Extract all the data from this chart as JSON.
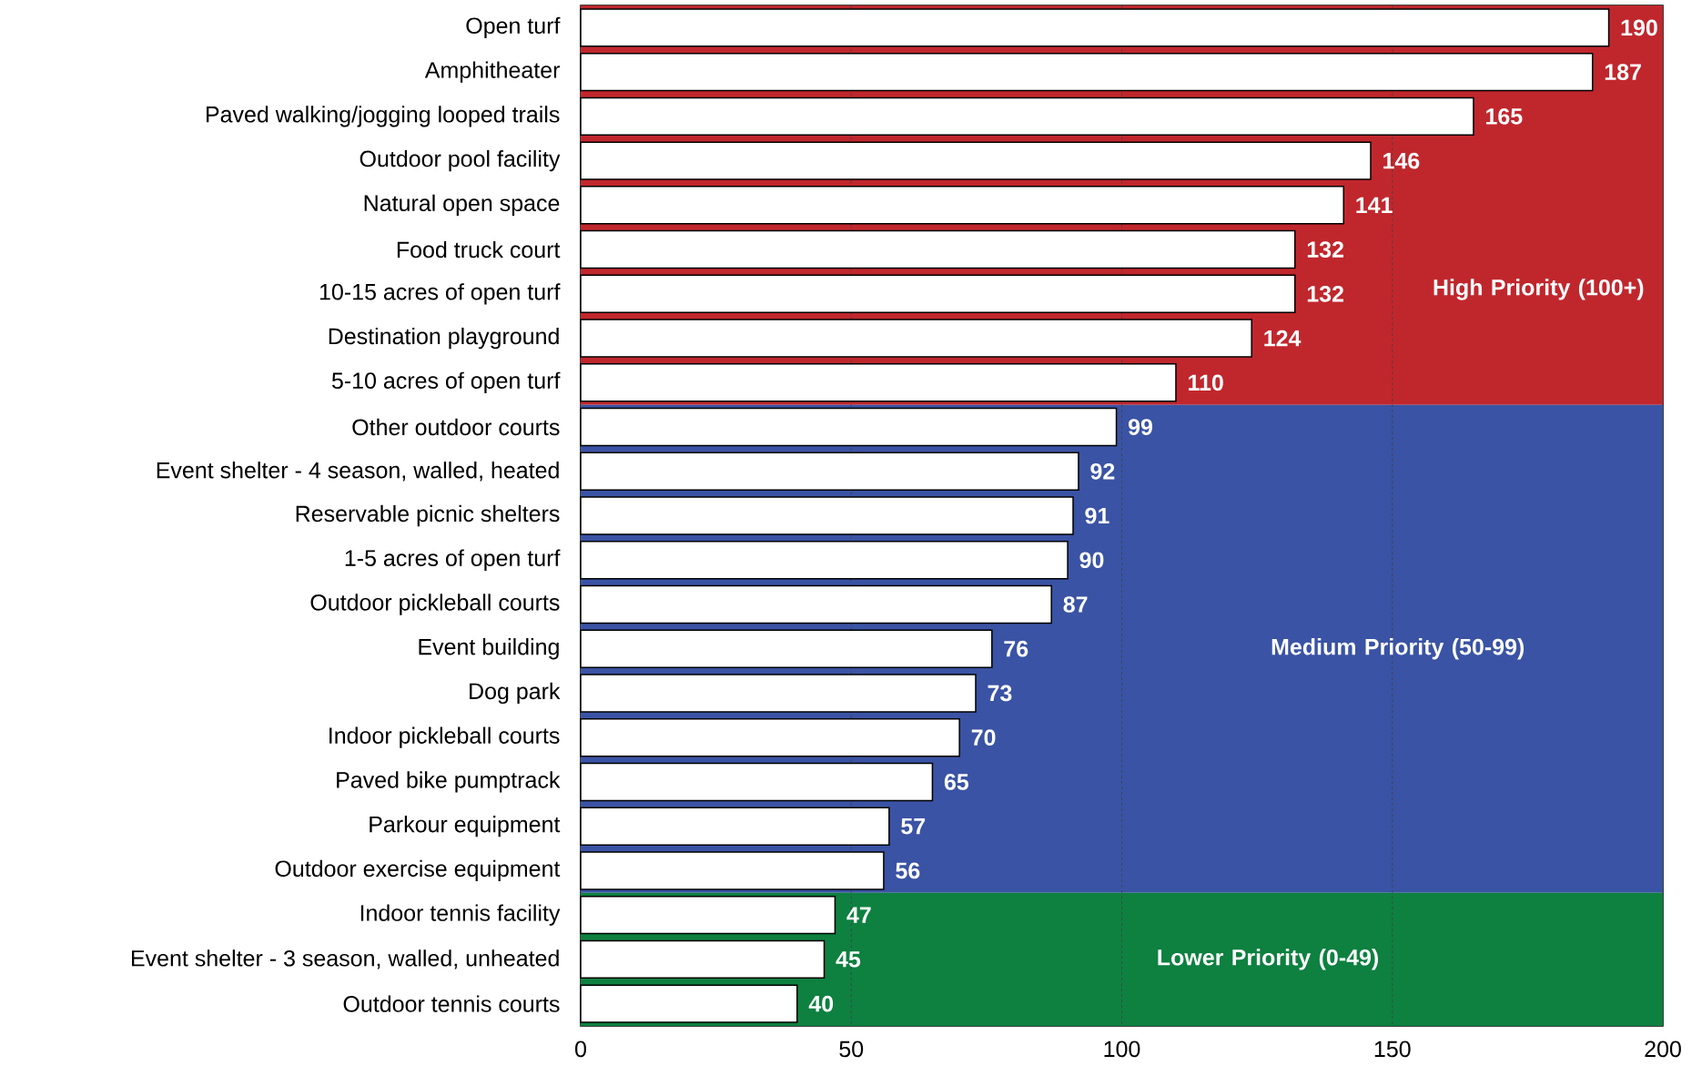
{
  "chart_data": {
    "type": "bar",
    "orientation": "horizontal",
    "categories": [
      "Open turf",
      "Amphitheater",
      "Paved walking/jogging looped trails",
      "Outdoor pool facility",
      "Natural open space",
      "Food truck court",
      "10-15 acres of open turf",
      "Destination playground",
      "5-10 acres of open turf",
      "Other outdoor courts",
      "Event shelter - 4 season, walled, heated",
      "Reservable picnic shelters",
      "1-5 acres of open turf",
      "Outdoor pickleball courts",
      "Event building",
      "Dog park",
      "Indoor pickleball courts",
      "Paved bike pumptrack",
      "Parkour equipment",
      "Outdoor exercise equipment",
      "Indoor tennis facility",
      "Event shelter - 3 season, walled, unheated",
      "Outdoor tennis courts"
    ],
    "values": [
      190,
      187,
      165,
      146,
      141,
      132,
      132,
      124,
      110,
      99,
      92,
      91,
      90,
      87,
      76,
      73,
      70,
      65,
      57,
      56,
      47,
      45,
      40
    ],
    "color": "#ffffff",
    "data_labels": true,
    "xlim": [
      0,
      200
    ],
    "xticks": [
      0,
      50,
      100,
      150,
      200
    ],
    "grid": "x",
    "bands": [
      {
        "axis": "y",
        "from": "Open turf",
        "to": "5-10 acres of open turf",
        "label": "High Priority (100+)",
        "color": "#c0272d"
      },
      {
        "axis": "y",
        "from": "Other outdoor courts",
        "to": "Outdoor exercise equipment",
        "label": "Medium Priority (50-99)",
        "color": "#3a53a4"
      },
      {
        "axis": "y",
        "from": "Indoor tennis facility",
        "to": "Outdoor tennis courts",
        "label": "Lower Priority (0-49)",
        "color": "#0e8040"
      }
    ]
  }
}
